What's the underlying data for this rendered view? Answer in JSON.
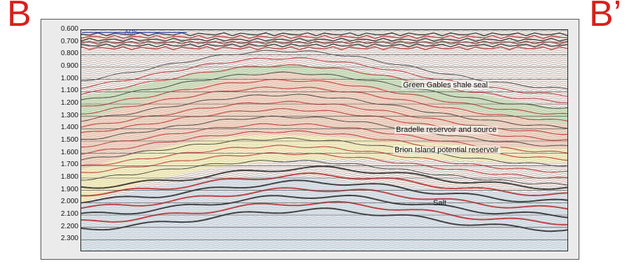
{
  "section_label_left": "B",
  "section_label_right": "B’",
  "colors": {
    "label_red": "#d7201c",
    "shale_seal": "#b7d8a6",
    "reservoir": "#f2c4a8",
    "potential_reservoir": "#f6f0a8",
    "salt": "#c9dcec",
    "reflector_dark": "#1a1a1a",
    "reflector_red": "#b32020"
  },
  "time_axis": {
    "ticks": [
      "0.600",
      "0.700",
      "0.800",
      "0.900",
      "1.000",
      "1.100",
      "1.200",
      "1.300",
      "1.400",
      "1.500",
      "1.600",
      "1.700",
      "1.800",
      "1.900",
      "2.000",
      "2.100",
      "2.200",
      "2.300"
    ],
    "range": [
      0.6,
      2.4
    ]
  },
  "aos_label": "AOS",
  "interpretations": {
    "shale_seal": "Green Gables shale seal",
    "reservoir_source": "Bradelle reservoir and source",
    "potential_reservoir": "Brion Island potential reservoir",
    "salt": "Salt"
  }
}
